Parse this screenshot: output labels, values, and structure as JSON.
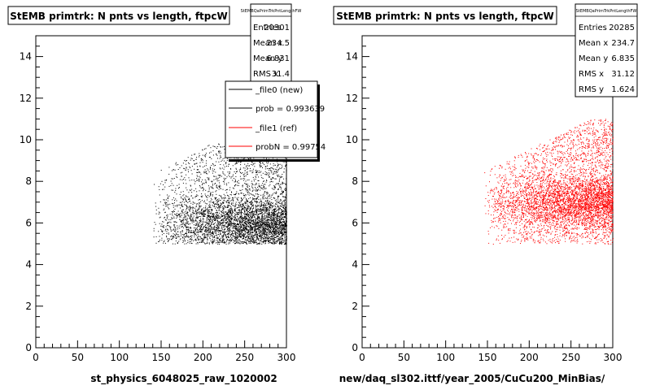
{
  "chart_data": [
    {
      "type": "scatter",
      "title": "StEMB primtrk: N pnts vs length, ftpcW",
      "xlabel": "st_physics_6048025_raw_1020002",
      "ylabel": "",
      "xlim": [
        0,
        300
      ],
      "ylim": [
        0,
        15
      ],
      "x_ticks": [
        "0",
        "50",
        "100",
        "150",
        "200",
        "250",
        "300"
      ],
      "y_ticks": [
        "0",
        "2",
        "4",
        "6",
        "8",
        "10",
        "12",
        "14"
      ],
      "marker_color": "#000000",
      "density": {
        "x_range": [
          140,
          300
        ],
        "y_range": [
          5,
          11
        ],
        "peak_x": 220,
        "peak_y": 6
      },
      "stats": {
        "name": "StEMBQaPrimTrkPntLengthFW",
        "entries_label": "Entries",
        "entries": "20301",
        "meanx_label": "Mean x",
        "meanx": "234.5",
        "meany_label": "Mean y",
        "meany": "6.831",
        "rmsx_label": "RMS x",
        "rmsx": "31.4"
      },
      "legend": [
        {
          "label": "_file0 (new)",
          "color": "#000000"
        },
        {
          "label": "prob = 0.993639",
          "color": "#000000"
        },
        {
          "label": "_file1 (ref)",
          "color": "#ff0000"
        },
        {
          "label": "probN = 0.99754",
          "color": "#ff0000"
        }
      ]
    },
    {
      "type": "scatter",
      "title": "StEMB primtrk: N pnts vs length, ftpcW",
      "xlabel": "new/daq_sl302.ittf/year_2005/CuCu200_MinBias/",
      "ylabel": "",
      "xlim": [
        0,
        300
      ],
      "ylim": [
        0,
        15
      ],
      "x_ticks": [
        "0",
        "50",
        "100",
        "150",
        "200",
        "250",
        "300"
      ],
      "y_ticks": [
        "0",
        "2",
        "4",
        "6",
        "8",
        "10",
        "12",
        "14"
      ],
      "marker_color": "#ff0000",
      "density": {
        "x_range": [
          145,
          300
        ],
        "y_range": [
          5,
          11
        ],
        "peak_x": 240,
        "peak_y": 7
      },
      "stats": {
        "name": "StEMBQaPrimTrkPntLengthFW",
        "entries_label": "Entries",
        "entries": "20285",
        "meanx_label": "Mean x",
        "meanx": "234.7",
        "meany_label": "Mean y",
        "meany": "6.835",
        "rmsx_label": "RMS x",
        "rmsx": "31.12",
        "rmsy_label": "RMS y",
        "rmsy": "1.624"
      }
    }
  ]
}
